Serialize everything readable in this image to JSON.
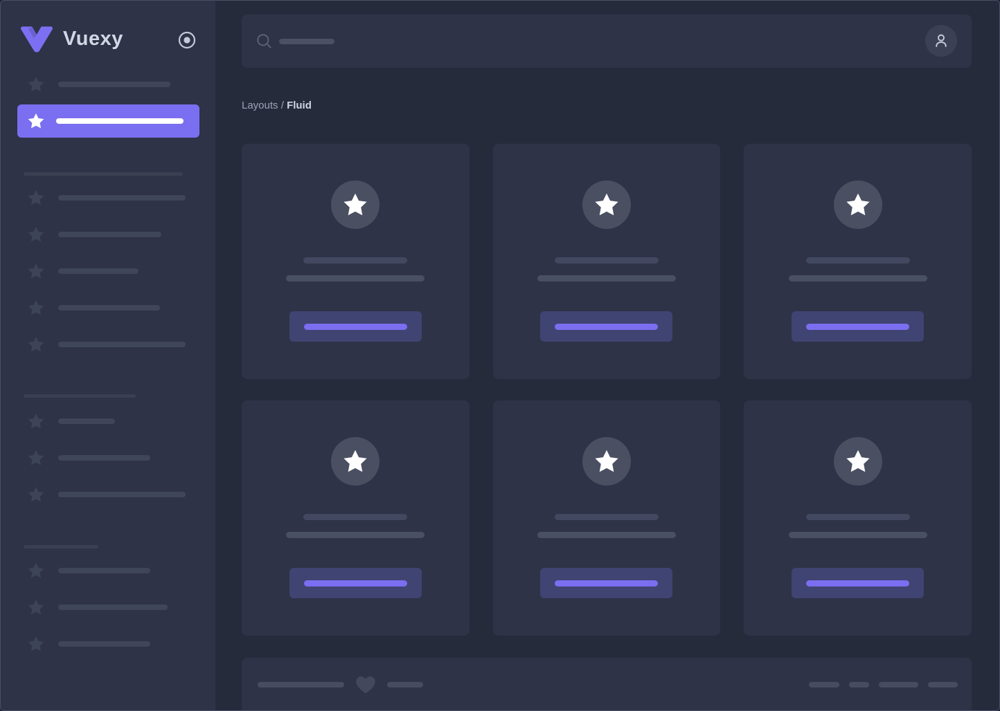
{
  "brand": {
    "name": "Vuexy",
    "logo_icon": "vuexy-v-logo"
  },
  "sidebar": {
    "collapse_toggle_icon": "radio-circle-icon",
    "item_icon": "star-icon",
    "menu": {
      "top_item_bar_width": 162,
      "active_item_bar_width": 184,
      "sections": [
        {
          "header_bar_width": 230,
          "item_bar_widths": [
            184,
            149,
            116,
            147,
            184
          ]
        },
        {
          "header_bar_width": 162,
          "item_bar_widths": [
            82,
            133,
            184
          ]
        },
        {
          "header_bar_width": 108,
          "item_bar_widths": [
            133,
            158,
            133
          ]
        }
      ]
    }
  },
  "topbar": {
    "search_icon": "search-icon",
    "search_placeholder_bar_width": 80,
    "avatar_icon": "user-icon"
  },
  "breadcrumb": {
    "parent": "Layouts",
    "separator": "/",
    "current": "Fluid"
  },
  "cards": {
    "count": 6,
    "avatar_icon": "star-icon",
    "line_bar_widths": [
      150,
      200
    ],
    "button_bar_width": 149
  },
  "footer": {
    "left_bar_widths": [
      125,
      52
    ],
    "heart_icon": "heart-icon",
    "right_bar_widths": [
      44,
      29,
      57,
      43
    ]
  },
  "colors": {
    "accent": "#7a6ff0",
    "logo": "#7c70f2",
    "sidebar_bg": "#2e3347",
    "main_bg": "#262b3c",
    "card_bg": "#2e3347",
    "sidebar_star": "#3e4457",
    "skeleton_bar": "#40465a",
    "skeleton_header": "#3a4052",
    "card_avatar_bg": "#4a4f62",
    "card_line1": "#424860",
    "card_line2": "#4a5064",
    "button_bg": "#404472",
    "button_bar": "#7b6ef0",
    "footer_bar": "#474c60",
    "heart": "#43485c",
    "search_icon": "#5c6174",
    "search_placeholder": "#4b5065",
    "avatar_button_bg": "#3b4054",
    "icon_light": "#c6cad8",
    "brand_text": "#d3d7e5",
    "breadcrumb_text": "#9da3b6",
    "breadcrumb_current": "#d0d5e4",
    "white": "#ffffff"
  }
}
